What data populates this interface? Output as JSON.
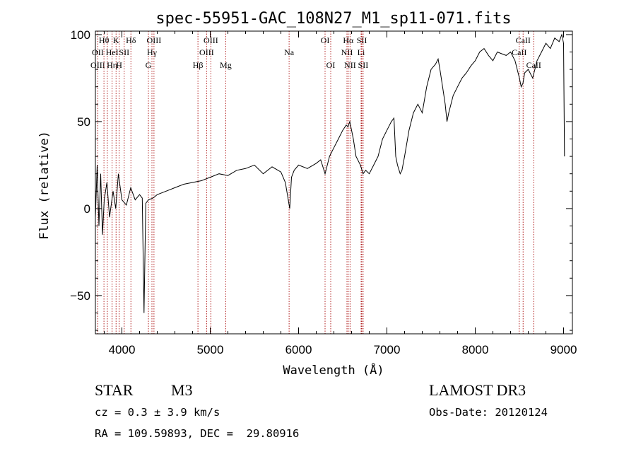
{
  "chart_data": {
    "type": "line",
    "title": "spec-55951-GAC_108N27_M1_sp11-071.fits",
    "xlabel": "Wavelength (Å)",
    "ylabel": "Flux (relative)",
    "xlim": [
      3700,
      9100
    ],
    "ylim": [
      -72,
      102
    ],
    "xticks": [
      4000,
      5000,
      6000,
      7000,
      8000,
      9000
    ],
    "xtick_labels": [
      "4000",
      "5000",
      "6000",
      "7000",
      "8000",
      "9000"
    ],
    "yticks": [
      -50,
      0,
      50,
      100
    ],
    "ytick_labels": [
      "−50",
      "0",
      "50",
      "100"
    ],
    "grid": false,
    "series": [
      {
        "name": "spectrum",
        "x": [
          3700,
          3720,
          3740,
          3760,
          3780,
          3800,
          3830,
          3860,
          3900,
          3930,
          3960,
          4000,
          4050,
          4100,
          4150,
          4200,
          4230,
          4250,
          4270,
          4300,
          4350,
          4400,
          4500,
          4600,
          4700,
          4800,
          4900,
          5000,
          5100,
          5200,
          5300,
          5400,
          5500,
          5600,
          5700,
          5800,
          5850,
          5900,
          5920,
          5950,
          6000,
          6100,
          6200,
          6250,
          6300,
          6350,
          6400,
          6450,
          6500,
          6540,
          6560,
          6580,
          6620,
          6650,
          6700,
          6730,
          6760,
          6800,
          6850,
          6900,
          6950,
          7000,
          7050,
          7080,
          7100,
          7120,
          7150,
          7170,
          7200,
          7250,
          7300,
          7350,
          7400,
          7450,
          7500,
          7550,
          7580,
          7600,
          7630,
          7660,
          7680,
          7700,
          7750,
          7800,
          7850,
          7900,
          7950,
          8000,
          8050,
          8100,
          8150,
          8200,
          8250,
          8300,
          8350,
          8400,
          8450,
          8500,
          8520,
          8540,
          8560,
          8600,
          8650,
          8700,
          8750,
          8800,
          8850,
          8900,
          8950,
          8980,
          9000,
          9010
        ],
        "y": [
          -5,
          25,
          -10,
          20,
          -15,
          5,
          15,
          -5,
          10,
          0,
          20,
          5,
          2,
          12,
          5,
          8,
          6,
          -60,
          3,
          5,
          6,
          8,
          10,
          12,
          14,
          15,
          16,
          18,
          20,
          19,
          22,
          23,
          25,
          20,
          24,
          21,
          15,
          0,
          18,
          22,
          25,
          23,
          26,
          28,
          20,
          30,
          35,
          40,
          45,
          48,
          47,
          50,
          40,
          30,
          25,
          20,
          22,
          20,
          25,
          30,
          40,
          45,
          50,
          52,
          30,
          25,
          20,
          22,
          30,
          45,
          55,
          60,
          55,
          70,
          80,
          83,
          86,
          80,
          70,
          60,
          50,
          55,
          65,
          70,
          75,
          78,
          82,
          85,
          90,
          92,
          88,
          85,
          90,
          89,
          88,
          90,
          85,
          75,
          70,
          72,
          78,
          80,
          75,
          85,
          90,
          95,
          92,
          98,
          96,
          100,
          95,
          30
        ]
      }
    ],
    "line_markers": [
      {
        "wavelength": 3727,
        "labels": [
          {
            "text": "OII",
            "row": 2
          },
          {
            "text": "OIII",
            "row": 3
          }
        ]
      },
      {
        "wavelength": 3797,
        "labels": [
          {
            "text": "Hθ",
            "row": 1
          }
        ]
      },
      {
        "wavelength": 3835,
        "labels": [
          {
            "text": "",
            "row": 0
          }
        ]
      },
      {
        "wavelength": 3889,
        "labels": [
          {
            "text": "HeI",
            "row": 2
          },
          {
            "text": "Hη",
            "row": 3
          }
        ]
      },
      {
        "wavelength": 3934,
        "labels": [
          {
            "text": "K",
            "row": 1
          }
        ]
      },
      {
        "wavelength": 3969,
        "labels": [
          {
            "text": "H",
            "row": 3
          }
        ]
      },
      {
        "wavelength": 4026,
        "labels": [
          {
            "text": "SII",
            "row": 2
          }
        ]
      },
      {
        "wavelength": 4102,
        "labels": [
          {
            "text": "Hδ",
            "row": 1
          }
        ]
      },
      {
        "wavelength": 4300,
        "labels": [
          {
            "text": "G",
            "row": 3
          }
        ]
      },
      {
        "wavelength": 4340,
        "labels": [
          {
            "text": "Hγ",
            "row": 2
          }
        ]
      },
      {
        "wavelength": 4363,
        "labels": [
          {
            "text": "OIII",
            "row": 1
          }
        ]
      },
      {
        "wavelength": 4861,
        "labels": [
          {
            "text": "Hβ",
            "row": 3
          }
        ]
      },
      {
        "wavelength": 4959,
        "labels": [
          {
            "text": "OIII",
            "row": 2
          }
        ]
      },
      {
        "wavelength": 5007,
        "labels": [
          {
            "text": "OIII",
            "row": 1
          }
        ]
      },
      {
        "wavelength": 5175,
        "labels": [
          {
            "text": "Mg",
            "row": 3
          }
        ]
      },
      {
        "wavelength": 5893,
        "labels": [
          {
            "text": "Na",
            "row": 2
          }
        ]
      },
      {
        "wavelength": 6300,
        "labels": [
          {
            "text": "OI",
            "row": 1
          }
        ]
      },
      {
        "wavelength": 6364,
        "labels": [
          {
            "text": "OI",
            "row": 3
          }
        ]
      },
      {
        "wavelength": 6548,
        "labels": [
          {
            "text": "NII",
            "row": 2
          }
        ]
      },
      {
        "wavelength": 6563,
        "labels": [
          {
            "text": "Hα",
            "row": 1
          }
        ]
      },
      {
        "wavelength": 6583,
        "labels": [
          {
            "text": "NII",
            "row": 3
          }
        ]
      },
      {
        "wavelength": 6708,
        "labels": [
          {
            "text": "Li",
            "row": 2
          }
        ]
      },
      {
        "wavelength": 6716,
        "labels": [
          {
            "text": "SII",
            "row": 1
          }
        ]
      },
      {
        "wavelength": 6731,
        "labels": [
          {
            "text": "SII",
            "row": 3
          }
        ]
      },
      {
        "wavelength": 8498,
        "labels": [
          {
            "text": "CaII",
            "row": 2
          }
        ]
      },
      {
        "wavelength": 8542,
        "labels": [
          {
            "text": "CaII",
            "row": 1
          }
        ]
      },
      {
        "wavelength": 8662,
        "labels": [
          {
            "text": "CaII",
            "row": 3
          }
        ]
      }
    ]
  },
  "footer": {
    "object_class": "STAR",
    "subclass": "M3",
    "survey": "LAMOST DR3",
    "cz": "cz = 0.3 ± 3.9 km/s",
    "obs_date": "Obs-Date: 20120124",
    "radec": "RA = 109.59893, DEC =  29.80916"
  },
  "colors": {
    "line_marker": "#b22222",
    "spectrum": "#000000",
    "axis": "#000000"
  }
}
